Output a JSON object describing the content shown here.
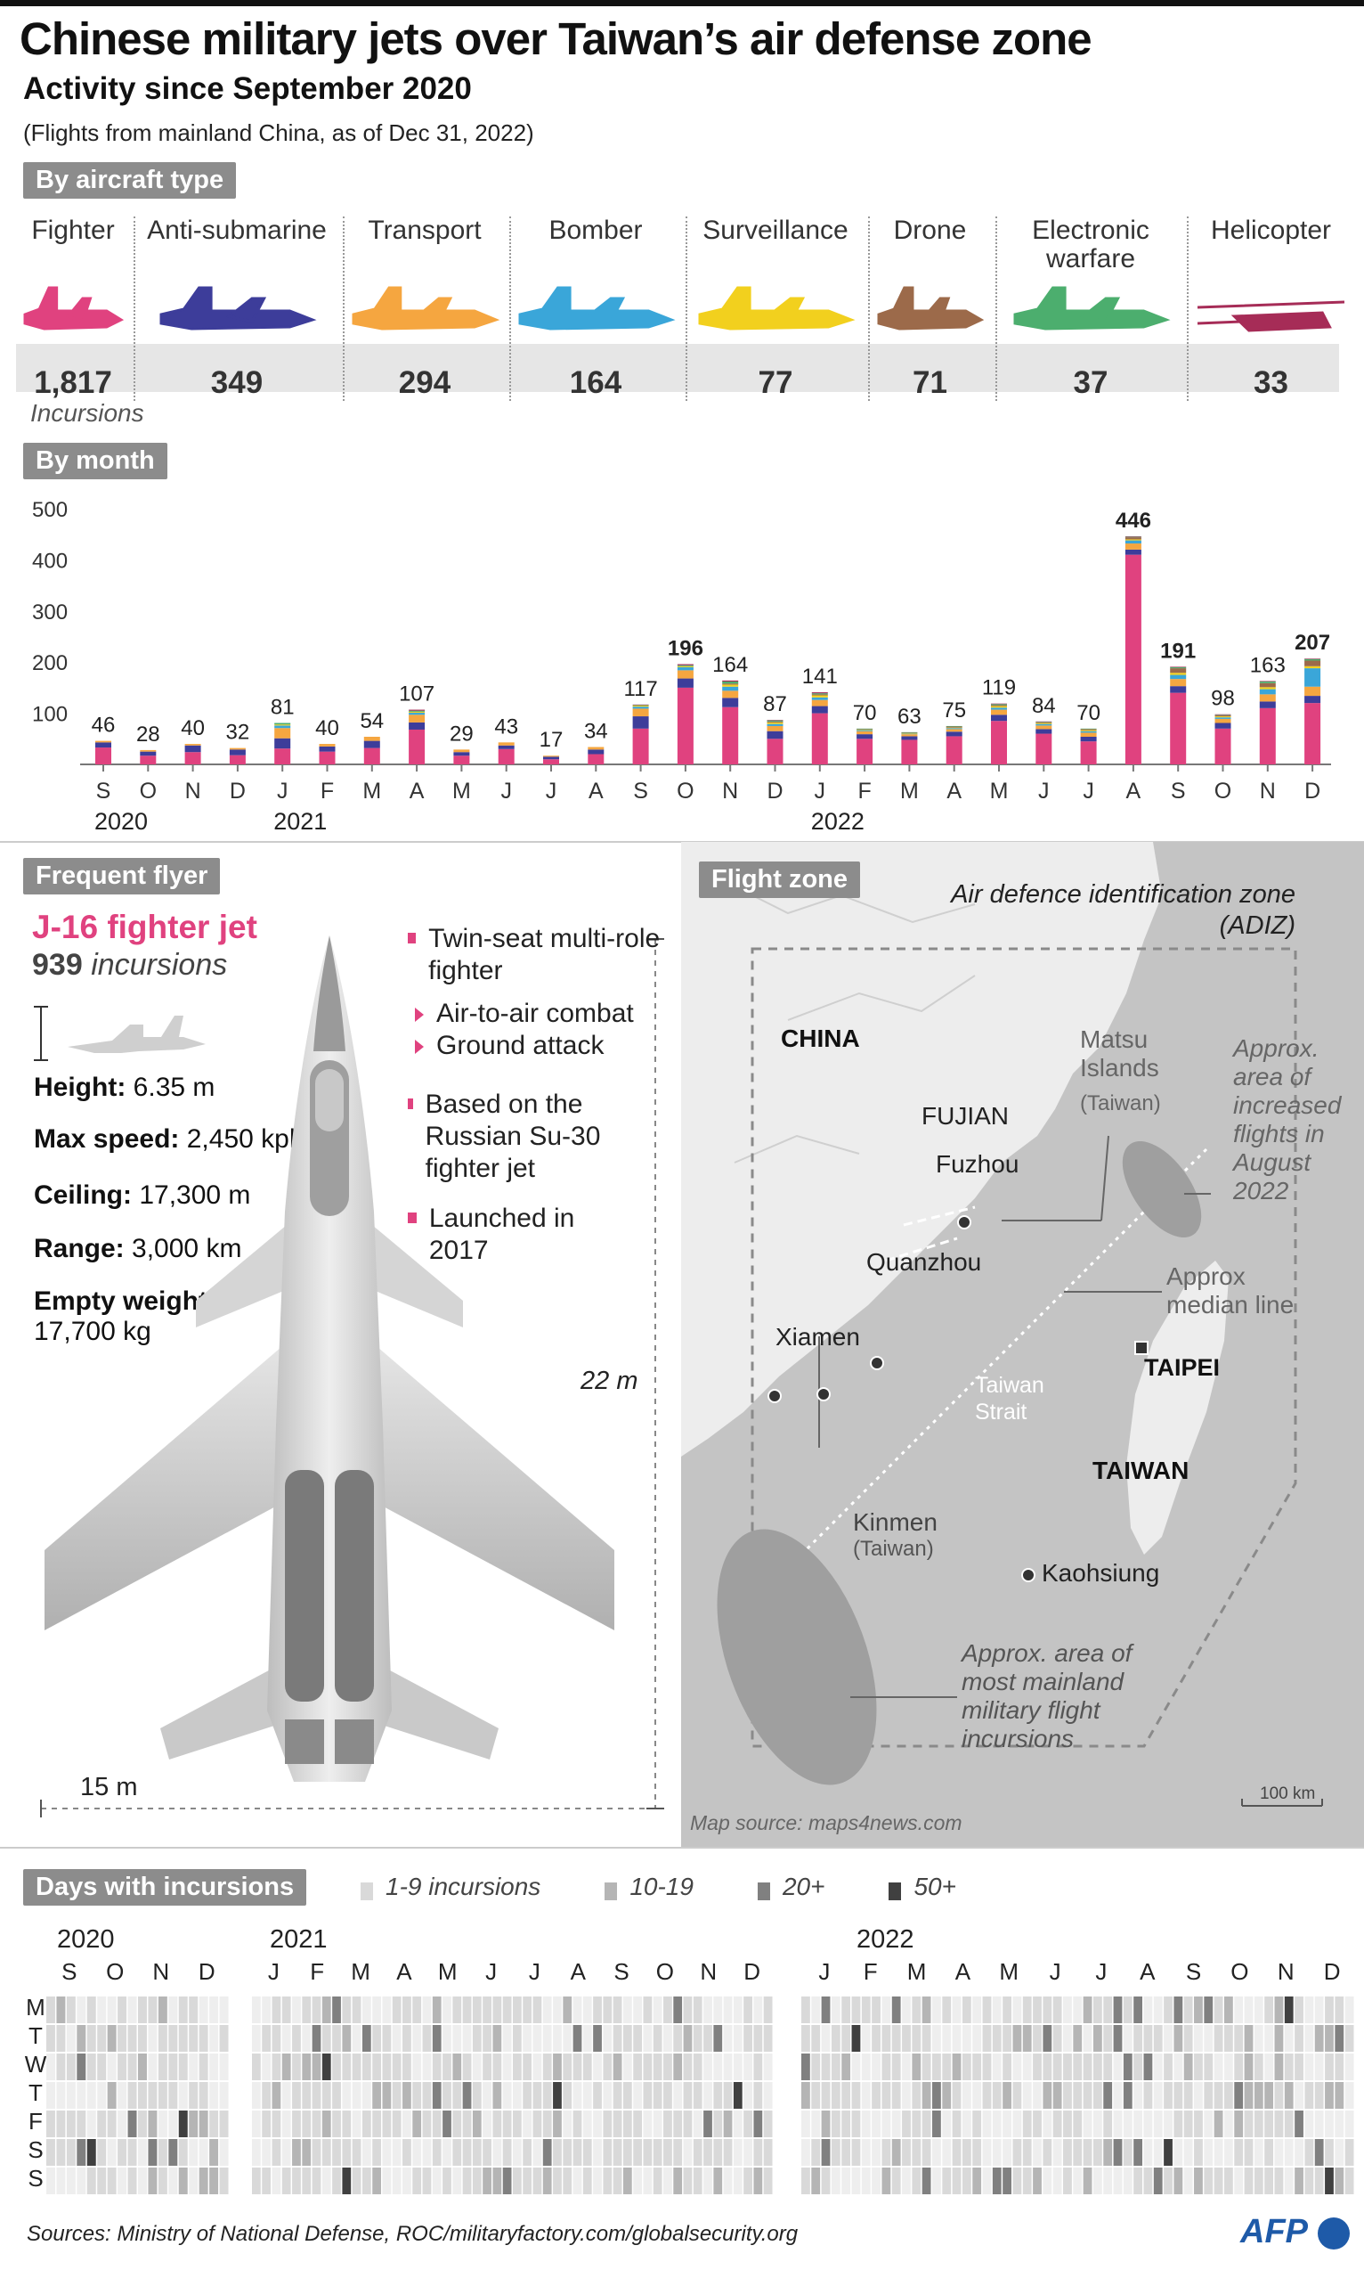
{
  "header": {
    "title": "Chinese military jets over Taiwan’s air defense zone",
    "subtitle": "Activity since September 2020",
    "note": "(Flights from mainland China, as of Dec 31, 2022)"
  },
  "aircraft": {
    "section_label": "By aircraft type",
    "incursions_label": "Incursions",
    "types": [
      {
        "label": "Fighter",
        "count": "1,817",
        "color": "#e0427f"
      },
      {
        "label": "Anti-submarine",
        "count": "349",
        "color": "#3d3d9a"
      },
      {
        "label": "Transport",
        "count": "294",
        "color": "#f5a640"
      },
      {
        "label": "Bomber",
        "count": "164",
        "color": "#3aa6d9"
      },
      {
        "label": "Surveillance",
        "count": "77",
        "color": "#f2d01e"
      },
      {
        "label": "Drone",
        "count": "71",
        "color": "#9c6a4a"
      },
      {
        "label": "Electronic warfare",
        "count": "37",
        "color": "#4cae6e"
      },
      {
        "label": "Helicopter",
        "count": "33",
        "color": "#a62c57"
      }
    ]
  },
  "monthly": {
    "section_label": "By month",
    "year_labels": [
      "2020",
      "2021",
      "2022"
    ]
  },
  "chart_data": {
    "type": "bar",
    "stacked": true,
    "categories": [
      "S",
      "O",
      "N",
      "D",
      "J",
      "F",
      "M",
      "A",
      "M",
      "J",
      "J",
      "A",
      "S",
      "O",
      "N",
      "D",
      "J",
      "F",
      "M",
      "A",
      "M",
      "J",
      "J",
      "A",
      "S",
      "O",
      "N",
      "D"
    ],
    "years": [
      "2020",
      "2020",
      "2020",
      "2020",
      "2021",
      "2021",
      "2021",
      "2021",
      "2021",
      "2021",
      "2021",
      "2021",
      "2021",
      "2021",
      "2021",
      "2021",
      "2022",
      "2022",
      "2022",
      "2022",
      "2022",
      "2022",
      "2022",
      "2022",
      "2022",
      "2022",
      "2022",
      "2022"
    ],
    "totals": [
      46,
      28,
      40,
      32,
      81,
      40,
      54,
      107,
      29,
      43,
      17,
      34,
      117,
      196,
      164,
      87,
      141,
      70,
      63,
      75,
      119,
      84,
      70,
      446,
      191,
      98,
      163,
      207
    ],
    "ylim": [
      0,
      500
    ],
    "yticks": [
      100,
      200,
      300,
      400,
      500
    ],
    "series": [
      {
        "name": "Fighter",
        "color": "#e0427f",
        "values": [
          33,
          17,
          24,
          18,
          31,
          25,
          32,
          68,
          17,
          30,
          10,
          20,
          70,
          150,
          112,
          50,
          100,
          50,
          48,
          55,
          85,
          60,
          45,
          410,
          140,
          70,
          110,
          120
        ]
      },
      {
        "name": "Anti-submarine",
        "color": "#3d3d9a",
        "values": [
          10,
          8,
          13,
          11,
          20,
          10,
          14,
          14,
          7,
          7,
          5,
          9,
          24,
          18,
          18,
          15,
          14,
          9,
          7,
          9,
          12,
          9,
          9,
          10,
          13,
          11,
          13,
          14
        ]
      },
      {
        "name": "Transport",
        "color": "#f5a640",
        "values": [
          3,
          3,
          3,
          3,
          20,
          5,
          8,
          15,
          5,
          6,
          2,
          5,
          15,
          16,
          14,
          10,
          12,
          6,
          4,
          5,
          10,
          7,
          8,
          12,
          14,
          8,
          14,
          18
        ]
      },
      {
        "name": "Bomber",
        "color": "#3aa6d9",
        "values": [
          0,
          0,
          0,
          0,
          5,
          0,
          0,
          4,
          0,
          0,
          0,
          0,
          4,
          6,
          8,
          4,
          5,
          2,
          1,
          2,
          4,
          3,
          3,
          6,
          8,
          3,
          10,
          36
        ]
      },
      {
        "name": "Surveillance",
        "color": "#f2d01e",
        "values": [
          0,
          0,
          0,
          0,
          2,
          0,
          0,
          2,
          0,
          0,
          0,
          0,
          2,
          2,
          4,
          3,
          4,
          1,
          1,
          1,
          3,
          2,
          2,
          2,
          4,
          2,
          4,
          4
        ]
      },
      {
        "name": "Drone",
        "color": "#9c6a4a",
        "values": [
          0,
          0,
          0,
          0,
          0,
          0,
          0,
          0,
          0,
          0,
          0,
          0,
          0,
          0,
          2,
          2,
          2,
          1,
          1,
          2,
          2,
          1,
          2,
          4,
          9,
          2,
          8,
          11
        ]
      },
      {
        "name": "Electronic warfare",
        "color": "#4cae6e",
        "values": [
          0,
          0,
          0,
          0,
          3,
          0,
          0,
          2,
          0,
          0,
          0,
          0,
          1,
          2,
          4,
          2,
          2,
          1,
          1,
          1,
          2,
          1,
          1,
          1,
          2,
          1,
          3,
          3
        ]
      },
      {
        "name": "Helicopter",
        "color": "#a62c57",
        "values": [
          0,
          0,
          0,
          0,
          0,
          0,
          0,
          2,
          0,
          0,
          0,
          0,
          1,
          2,
          2,
          1,
          2,
          0,
          0,
          0,
          1,
          1,
          0,
          1,
          1,
          1,
          1,
          1
        ]
      }
    ]
  },
  "frequent_flyer": {
    "section_label": "Frequent flyer",
    "name": "J-16 fighter jet",
    "incursion_count": "939",
    "incursion_word": "incursions",
    "specs": [
      {
        "label": "Height:",
        "value": "6.35 m"
      },
      {
        "label": "Max speed:",
        "value": "2,450 kph"
      },
      {
        "label": "Ceiling:",
        "value": "17,300 m"
      },
      {
        "label": "Range:",
        "value": "3,000 km"
      },
      {
        "label": "Empty weight:",
        "value": "17,700 kg"
      }
    ],
    "features": {
      "role": "Twin-seat multi-role fighter",
      "sub1": "Air-to-air combat",
      "sub2": "Ground attack",
      "based": "Based on the Russian Su-30 fighter jet",
      "launched": "Launched in 2017"
    },
    "length_label": "22 m",
    "wingspan_label": "15 m"
  },
  "map": {
    "section_label": "Flight zone",
    "adiz_label": "Air defence identification zone (ADIZ)",
    "china": "CHINA",
    "fujian": "FUJIAN",
    "matsu": "Matsu Islands",
    "matsu_sub": "(Taiwan)",
    "august_area": "Approx. area of increased flights in August 2022",
    "fuzhou": "Fuzhou",
    "quanzhou": "Quanzhou",
    "median": "Approx median line",
    "xiamen": "Xiamen",
    "taipei": "TAIPEI",
    "strait": "Taiwan Strait",
    "taiwan": "TAIWAN",
    "kinmen": "Kinmen",
    "kinmen_sub": "(Taiwan)",
    "kaohsiung": "Kaohsiung",
    "mainland_area": "Approx. area of most mainland military flight incursions",
    "scale": "100 km",
    "source": "Map source: maps4news.com"
  },
  "days": {
    "section_label": "Days with incursions",
    "legend": [
      {
        "label": "1-9 incursions",
        "color": "#d9d9d9"
      },
      {
        "label": "10-19",
        "color": "#b5b5b5"
      },
      {
        "label": "20+",
        "color": "#808080"
      },
      {
        "label": "50+",
        "color": "#404040"
      }
    ],
    "years": [
      "2020",
      "2021",
      "2022"
    ],
    "months_2020": [
      "S",
      "O",
      "N",
      "D"
    ],
    "months_2021": [
      "J",
      "F",
      "M",
      "A",
      "M",
      "J",
      "J",
      "A",
      "S",
      "O",
      "N",
      "D"
    ],
    "months_2022": [
      "J",
      "F",
      "M",
      "A",
      "M",
      "J",
      "J",
      "A",
      "S",
      "O",
      "N",
      "D"
    ],
    "weekdays": [
      "M",
      "T",
      "W",
      "T",
      "F",
      "S",
      "S"
    ]
  },
  "footer": {
    "sources": "Sources: Ministry of National Defense, ROC/militaryfactory.com/globalsecurity.org",
    "logo": "AFP"
  }
}
